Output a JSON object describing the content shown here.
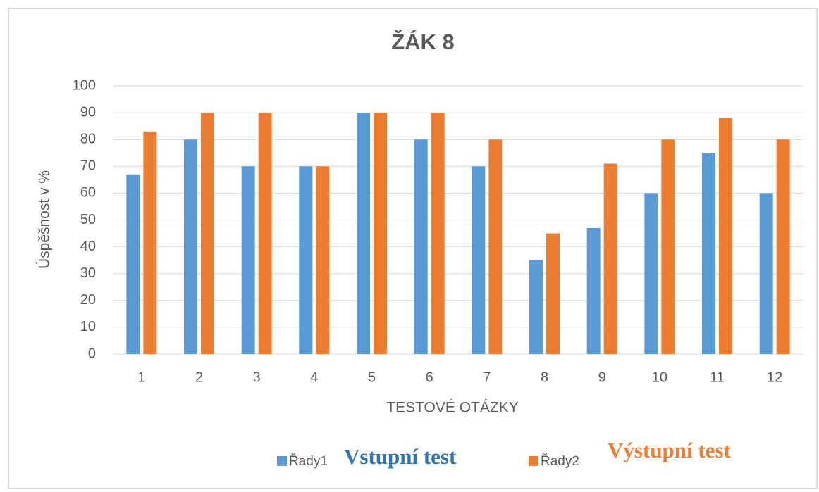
{
  "chart_data": {
    "type": "bar",
    "title": "ŽÁK 8",
    "x_label": "TESTOVÉ OTÁZKY",
    "y_label": "Úspěšnost  v %",
    "categories": [
      "1",
      "2",
      "3",
      "4",
      "5",
      "6",
      "7",
      "8",
      "9",
      "10",
      "11",
      "12"
    ],
    "series": [
      {
        "name": "Řady1",
        "color": "#5b9bd5",
        "values": [
          67,
          80,
          70,
          70,
          90,
          80,
          70,
          35,
          47,
          60,
          75,
          60
        ]
      },
      {
        "name": "Řady2",
        "color": "#ed7d31",
        "values": [
          83,
          90,
          90,
          70,
          90,
          90,
          80,
          45,
          71,
          80,
          88,
          80
        ]
      }
    ],
    "annotations": [
      {
        "text": "Vstupní test",
        "color": "#2e75b6"
      },
      {
        "text": "Výstupní test",
        "color": "#ed7d31"
      }
    ],
    "ylim": [
      0,
      100
    ],
    "yticks": [
      0,
      10,
      20,
      30,
      40,
      50,
      60,
      70,
      80,
      90,
      100
    ],
    "grid": true
  }
}
